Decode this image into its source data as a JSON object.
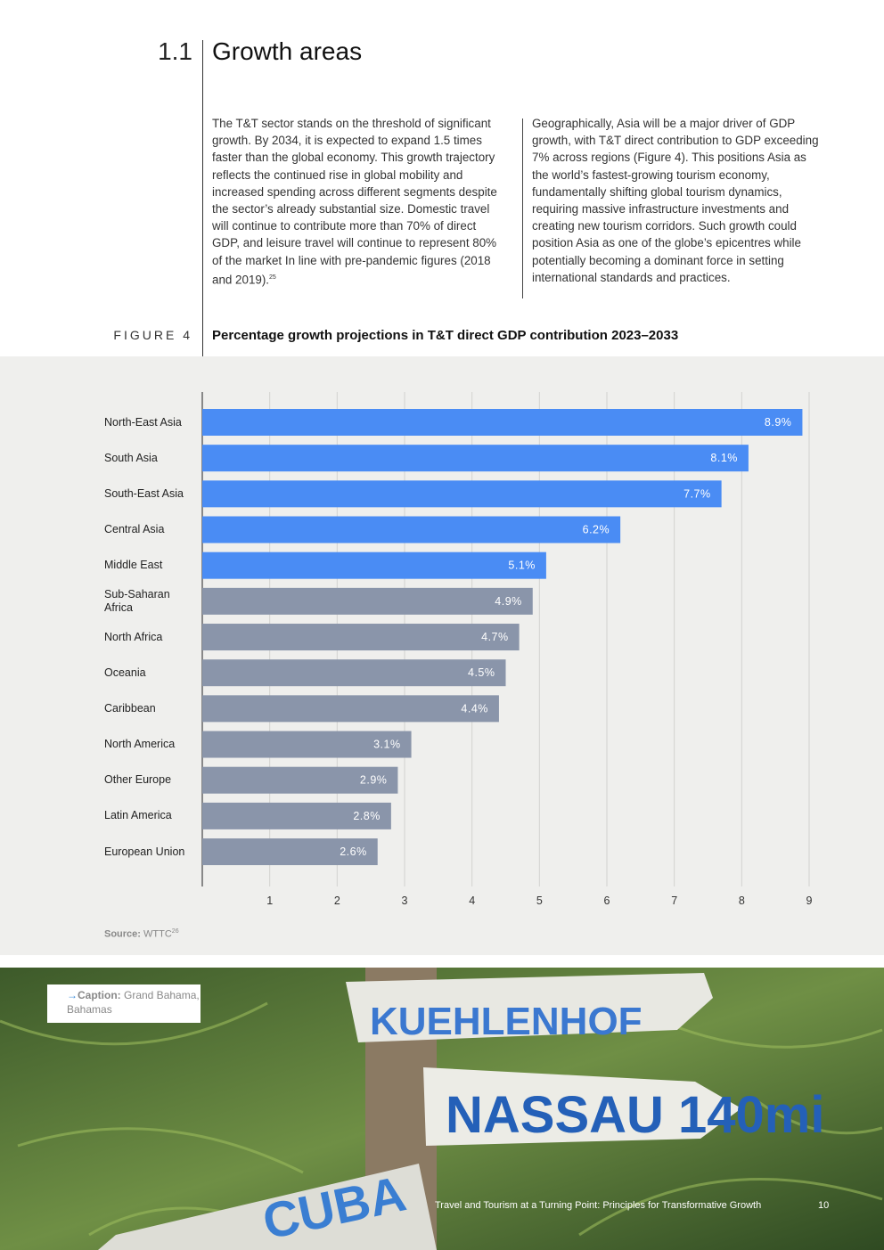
{
  "section": {
    "number": "1.1",
    "title": "Growth areas"
  },
  "body": [
    {
      "text": "The T&T sector stands on the threshold of significant growth. By 2034, it is expected to expand 1.5 times faster than the global economy. This growth trajectory reflects the continued rise in global mobility and increased spending across different segments despite the sector’s already substantial size. Domestic travel will continue to contribute more than 70% of direct GDP, and leisure travel will continue to represent 80% of the market In line with pre-pandemic figures (2018 and 2019).",
      "footnote": "25"
    },
    {
      "text": "Geographically, Asia will be a major driver of GDP growth, with T&T direct contribution to GDP exceeding 7% across regions (Figure 4). This positions Asia as the world’s fastest-growing tourism economy, fundamentally shifting global tourism dynamics, requiring massive infrastructure investments and creating new tourism corridors. Such growth could position Asia as one of the globe’s epicentres while potentially becoming a dominant force in setting international standards and practices."
    }
  ],
  "figure": {
    "label": "FIGURE 4",
    "title": "Percentage growth projections in T&T direct GDP contribution 2023–2033"
  },
  "chart_data": {
    "type": "bar",
    "orientation": "horizontal",
    "categories": [
      "North-East Asia",
      "South Asia",
      "South-East Asia",
      "Central Asia",
      "Middle East",
      "Sub-Saharan Africa",
      "North Africa",
      "Oceania",
      "Caribbean",
      "North America",
      "Other Europe",
      "Latin America",
      "European Union"
    ],
    "values": [
      8.9,
      8.1,
      7.7,
      6.2,
      5.1,
      4.9,
      4.7,
      4.5,
      4.4,
      3.1,
      2.9,
      2.8,
      2.6
    ],
    "value_labels": [
      "8.9%",
      "8.1%",
      "7.7%",
      "6.2%",
      "5.1%",
      "4.9%",
      "4.7%",
      "4.5%",
      "4.4%",
      "3.1%",
      "2.9%",
      "2.8%",
      "2.6%"
    ],
    "colors": [
      "#4a8cf4",
      "#4a8cf4",
      "#4a8cf4",
      "#4a8cf4",
      "#4a8cf4",
      "#8a95aa",
      "#8a95aa",
      "#8a95aa",
      "#8a95aa",
      "#8a95aa",
      "#8a95aa",
      "#8a95aa",
      "#8a95aa"
    ],
    "xlim": [
      0,
      9
    ],
    "xticks": [
      1,
      2,
      3,
      4,
      5,
      6,
      7,
      8,
      9
    ],
    "grid": true
  },
  "source": {
    "label": "Source:",
    "text": "WTTC",
    "footnote": "26"
  },
  "photo": {
    "signs": [
      "KUEHLENHOF",
      "NASSAU 140mi",
      "CUBA"
    ]
  },
  "caption": {
    "label": "Caption:",
    "text": "Grand Bahama, Bahamas"
  },
  "footer": {
    "title": "Travel and Tourism at a Turning Point: Principles for Transformative Growth",
    "page": "10"
  }
}
